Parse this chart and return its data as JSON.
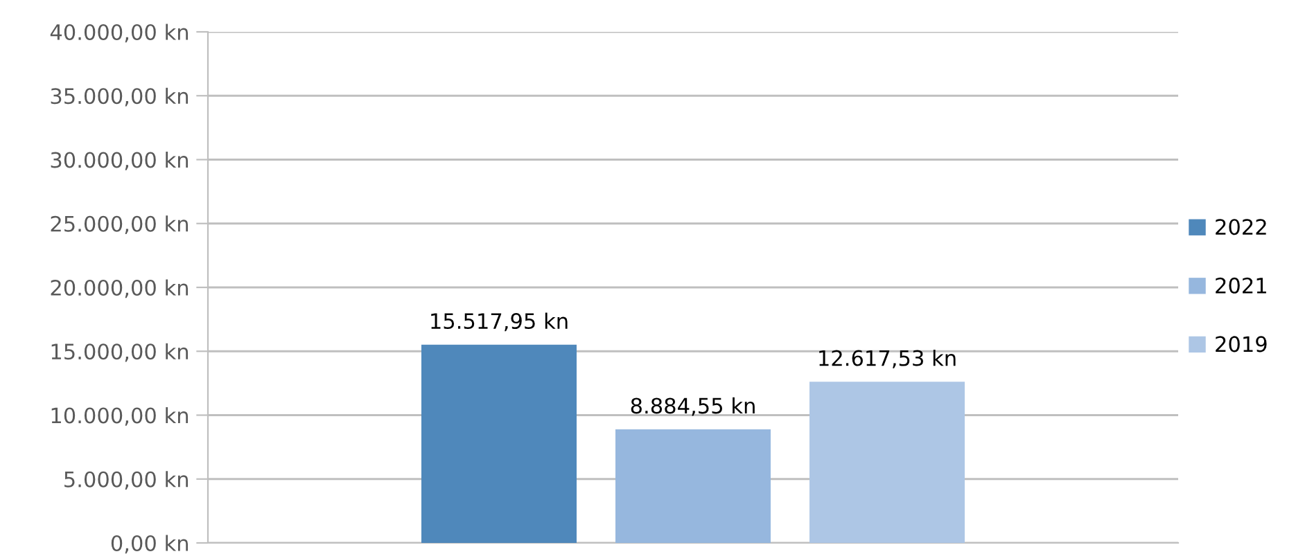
{
  "chart_data": {
    "type": "bar",
    "categories": [
      null
    ],
    "series": [
      {
        "name": "2022",
        "color": "#4f88bb",
        "values": [
          15517.95
        ],
        "value_labels": [
          "15.517,95 kn"
        ]
      },
      {
        "name": "2021",
        "color": "#96b7de",
        "values": [
          8884.55
        ],
        "value_labels": [
          "8.884,55 kn"
        ]
      },
      {
        "name": "2019",
        "color": "#adc6e5",
        "values": [
          12617.53
        ],
        "value_labels": [
          "12.617,53 kn"
        ]
      }
    ],
    "ylim": [
      0,
      40000
    ],
    "yticks": [
      {
        "value": 0,
        "label": "0,00 kn"
      },
      {
        "value": 5000,
        "label": "5.000,00 kn"
      },
      {
        "value": 10000,
        "label": "10.000,00 kn"
      },
      {
        "value": 15000,
        "label": "15.000,00 kn"
      },
      {
        "value": 20000,
        "label": "20.000,00 kn"
      },
      {
        "value": 25000,
        "label": "25.000,00 kn"
      },
      {
        "value": 30000,
        "label": "30.000,00 kn"
      },
      {
        "value": 35000,
        "label": "35.000,00 kn"
      },
      {
        "value": 40000,
        "label": "40.000,00 kn"
      }
    ],
    "grid": "y",
    "legend": "right",
    "tick_labels": "y"
  }
}
